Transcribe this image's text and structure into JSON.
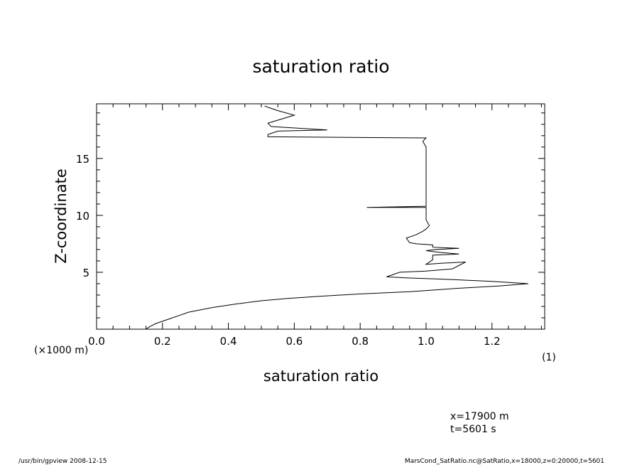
{
  "chart_data": {
    "type": "line",
    "title": "saturation ratio",
    "xlabel": "saturation ratio",
    "x_unit": "(1)",
    "ylabel": "Z-coordinate",
    "y_unit": "(×1000 m)",
    "xlim": [
      0.0,
      1.36
    ],
    "ylim": [
      0.0,
      19.8
    ],
    "x_ticks": [
      0.0,
      0.2,
      0.4,
      0.6,
      0.8,
      1.0,
      1.2
    ],
    "x_tick_labels": [
      "0.0",
      "0.2",
      "0.4",
      "0.6",
      "0.8",
      "1.0",
      "1.2"
    ],
    "y_ticks": [
      5,
      10,
      15
    ],
    "y_tick_labels": [
      "5",
      "10",
      "15"
    ],
    "grid": false,
    "series": [
      {
        "x": [
          0.15,
          0.16,
          0.18,
          0.22,
          0.28,
          0.35,
          0.42,
          0.5,
          0.58,
          0.68,
          0.8,
          0.95,
          1.1,
          1.22,
          1.31,
          1.2,
          1.05,
          0.95,
          0.88,
          0.92,
          1.0,
          1.08,
          1.12,
          1.05,
          1.0,
          1.02,
          1.02,
          1.1,
          1.04,
          1.0,
          1.03,
          1.1,
          1.02,
          1.02,
          0.97,
          0.95,
          0.94,
          0.97,
          0.99,
          1.0,
          1.01,
          1.0,
          1.0,
          1.0,
          1.0,
          0.82,
          1.0,
          1.0,
          1.0,
          1.0,
          0.99,
          1.0,
          0.52,
          0.52,
          0.55,
          0.7,
          0.53,
          0.52,
          0.6,
          0.55,
          0.51
        ],
        "y": [
          0.0,
          0.2,
          0.5,
          0.9,
          1.5,
          1.9,
          2.2,
          2.5,
          2.7,
          2.9,
          3.1,
          3.3,
          3.6,
          3.8,
          4.0,
          4.2,
          4.4,
          4.5,
          4.6,
          5.0,
          5.1,
          5.3,
          5.9,
          5.8,
          5.7,
          6.1,
          6.5,
          6.6,
          6.75,
          6.9,
          7.0,
          7.1,
          7.2,
          7.4,
          7.5,
          7.6,
          8.0,
          8.3,
          8.6,
          8.8,
          9.1,
          9.6,
          10.0,
          10.5,
          10.7,
          10.7,
          10.8,
          12.0,
          14.0,
          16.0,
          16.5,
          16.8,
          16.9,
          17.1,
          17.4,
          17.5,
          17.8,
          18.1,
          18.8,
          19.2,
          19.6
        ]
      }
    ],
    "annotations": [
      "x=17900  m",
      "t=5601  s"
    ]
  },
  "footer": {
    "left": "/usr/bin/gpview   2008-12-15",
    "right": "MarsCond_SatRatio.nc@SatRatio,x=18000,z=0:20000,t=5601"
  }
}
